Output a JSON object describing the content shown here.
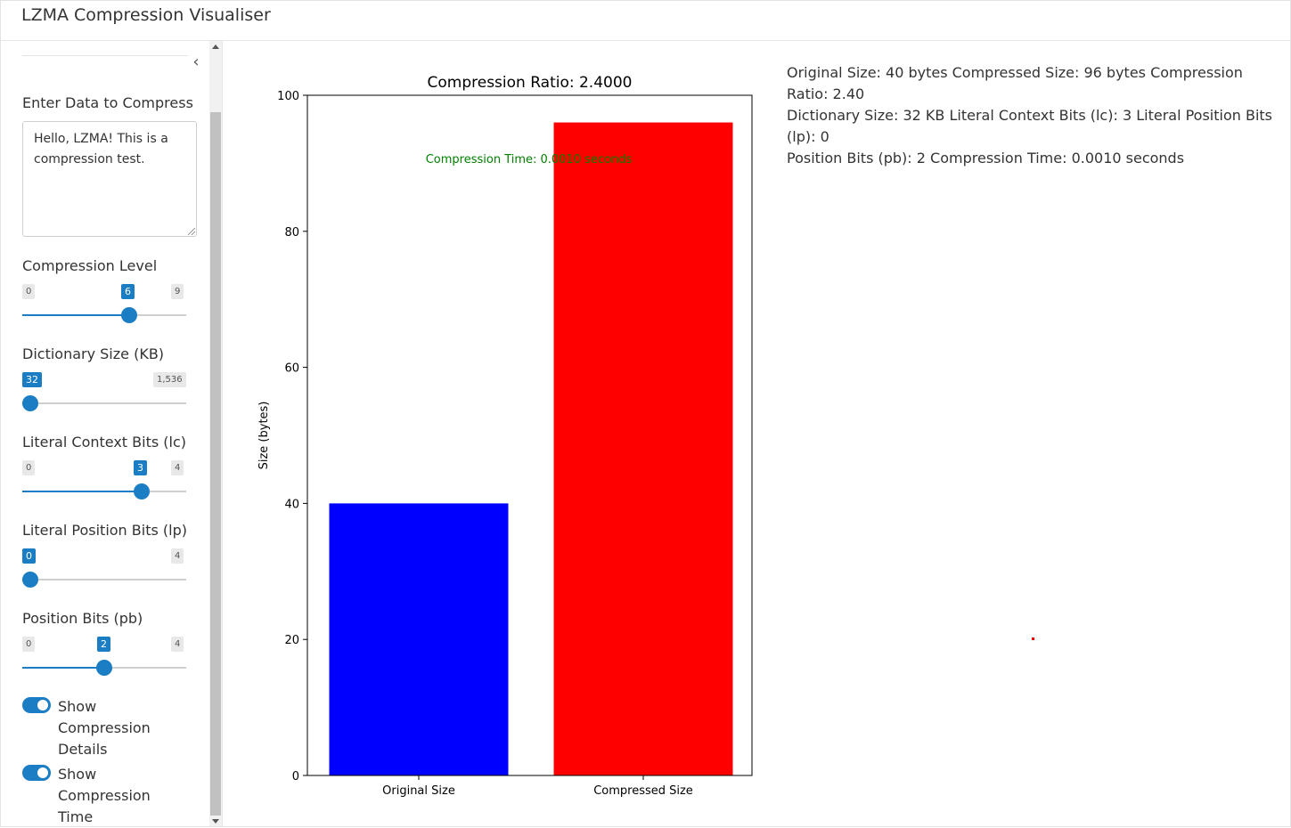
{
  "app": {
    "title": "LZMA Compression Visualiser"
  },
  "sidebar": {
    "input": {
      "label": "Enter Data to Compress",
      "value": "Hello, LZMA! This is a compression test."
    },
    "sliders": [
      {
        "id": "compression-level",
        "label": "Compression Level",
        "min_label": "0",
        "max_label": "9",
        "value_label": "6",
        "min": 0,
        "max": 9,
        "value": 6
      },
      {
        "id": "dictionary-size",
        "label": "Dictionary Size (KB)",
        "min_label": "32",
        "max_label": "1,536",
        "value_label": "32",
        "min": 32,
        "max": 1536,
        "value": 32
      },
      {
        "id": "literal-context-bits",
        "label": "Literal Context Bits (lc)",
        "min_label": "0",
        "max_label": "4",
        "value_label": "3",
        "min": 0,
        "max": 4,
        "value": 3
      },
      {
        "id": "literal-position-bits",
        "label": "Literal Position Bits (lp)",
        "min_label": "0",
        "max_label": "4",
        "value_label": "0",
        "min": 0,
        "max": 4,
        "value": 0
      },
      {
        "id": "position-bits",
        "label": "Position Bits (pb)",
        "min_label": "0",
        "max_label": "4",
        "value_label": "2",
        "min": 0,
        "max": 4,
        "value": 2
      }
    ],
    "toggles": [
      {
        "label_line1": "Show Compression",
        "label_line2": "Details",
        "on": true
      },
      {
        "label_line1": "Show Compression",
        "label_line2": "Time",
        "on": true
      }
    ]
  },
  "details_text": {
    "line1": "Original Size: 40 bytes Compressed Size: 96 bytes Compression Ratio: 2.40",
    "line2": "Dictionary Size: 32 KB Literal Context Bits (lc): 3 Literal Position Bits (lp): 0",
    "line3": "Position Bits (pb): 2 Compression Time: 0.0010 seconds"
  },
  "chart_data": {
    "type": "bar",
    "title": "Compression Ratio: 2.4000",
    "ylabel": "Size (bytes)",
    "xlabel": "",
    "categories": [
      "Original Size",
      "Compressed Size"
    ],
    "values": [
      40,
      96
    ],
    "colors": [
      "#0000ff",
      "#ff0000"
    ],
    "ylim": [
      0,
      100
    ],
    "yticks": [
      0,
      20,
      40,
      60,
      80,
      100
    ],
    "annotation": {
      "text": "Compression Time: 0.0010 seconds",
      "color": "#008000"
    }
  }
}
